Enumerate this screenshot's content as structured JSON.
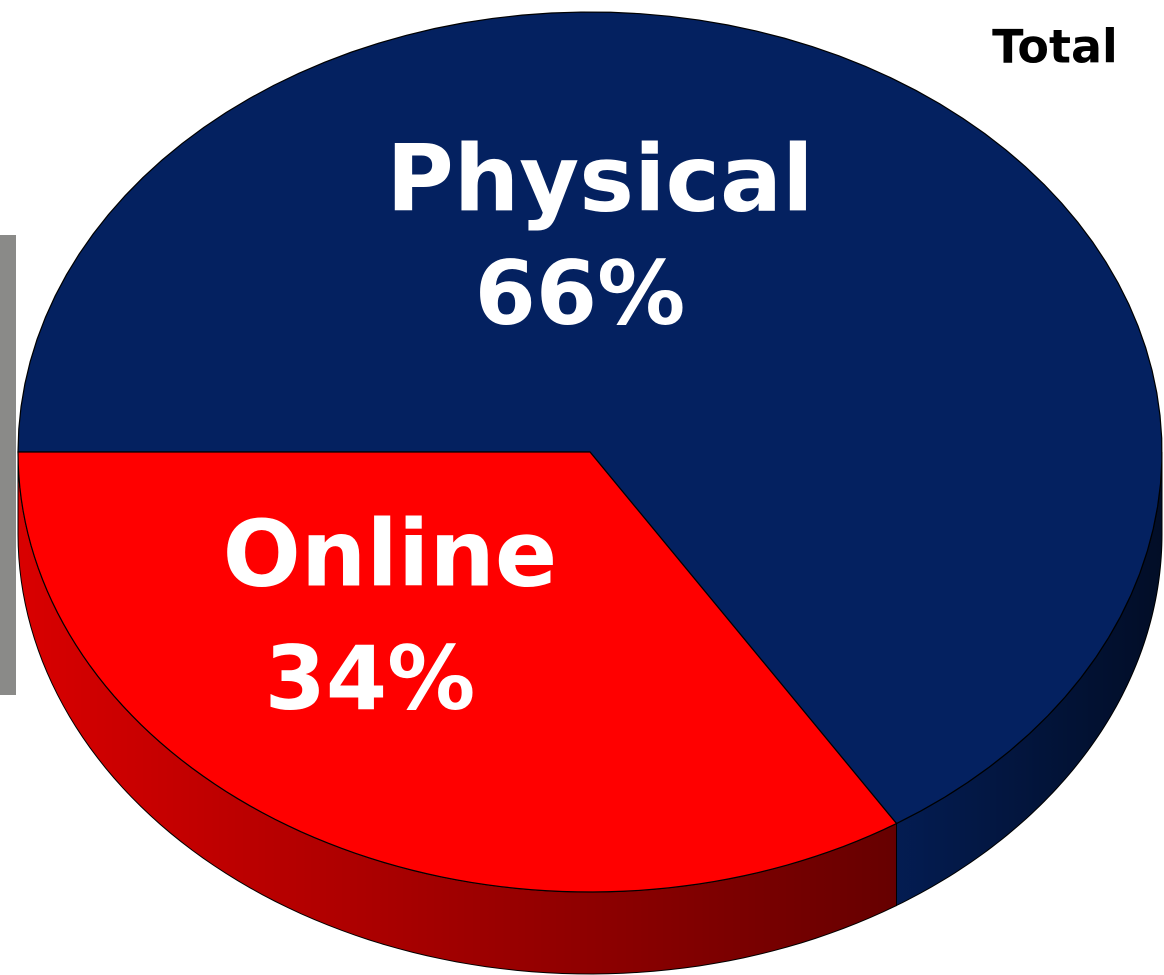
{
  "chart_data": {
    "type": "pie",
    "title": "Total",
    "categories": [
      "Physical",
      "Online"
    ],
    "values": [
      66,
      34
    ],
    "value_labels": [
      "66%",
      "34%"
    ],
    "colors": [
      "#042160",
      "#ff0000"
    ]
  }
}
